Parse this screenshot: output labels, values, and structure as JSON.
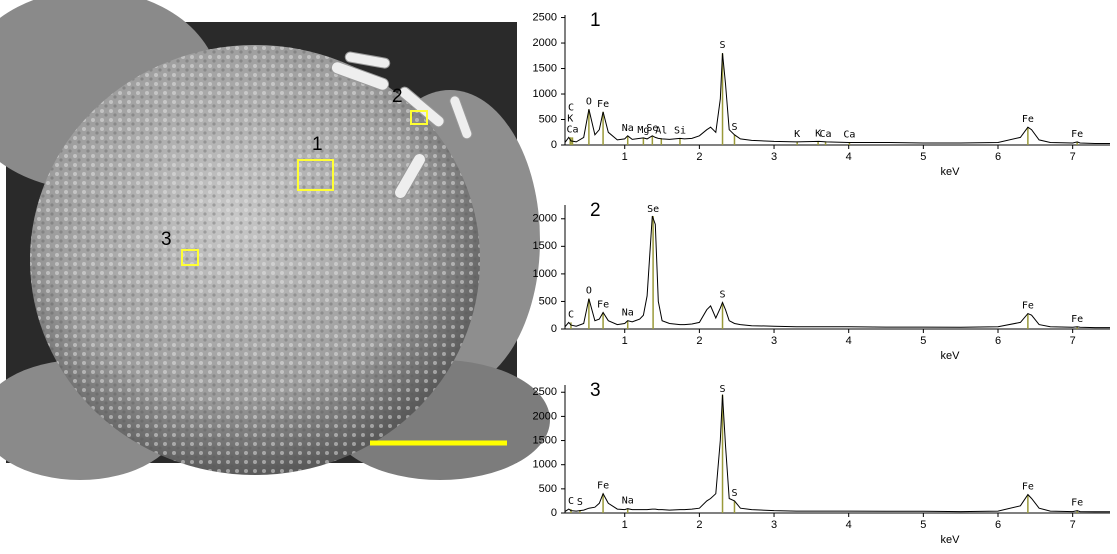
{
  "image": {
    "regions": [
      {
        "label": "1"
      },
      {
        "label": "2"
      },
      {
        "label": "3"
      }
    ]
  },
  "chart_data": [
    {
      "type": "line",
      "title": "1",
      "xlabel": "keV",
      "xlim": [
        0.2,
        7.5
      ],
      "ylim": [
        0,
        2550
      ],
      "xticks": [
        1,
        2,
        3,
        4,
        5,
        6,
        7
      ],
      "yticks": [
        0,
        500,
        1000,
        1500,
        2000,
        2500
      ],
      "color": "#000000",
      "x": [
        0.2,
        0.25,
        0.28,
        0.35,
        0.45,
        0.52,
        0.6,
        0.66,
        0.71,
        0.78,
        0.9,
        1.0,
        1.04,
        1.1,
        1.2,
        1.25,
        1.3,
        1.37,
        1.41,
        1.45,
        1.5,
        1.6,
        1.74,
        1.8,
        1.9,
        2.0,
        2.1,
        2.15,
        2.22,
        2.28,
        2.31,
        2.35,
        2.4,
        2.47,
        2.55,
        2.7,
        3.0,
        3.3,
        3.6,
        3.7,
        4.0,
        4.5,
        5.0,
        5.5,
        6.0,
        6.3,
        6.4,
        6.45,
        6.55,
        6.7,
        7.0,
        7.06,
        7.1,
        7.3,
        7.5
      ],
      "values": [
        50,
        150,
        80,
        60,
        150,
        700,
        200,
        300,
        650,
        250,
        100,
        120,
        180,
        110,
        130,
        140,
        120,
        180,
        150,
        130,
        120,
        110,
        130,
        120,
        130,
        180,
        300,
        350,
        250,
        900,
        1800,
        1200,
        300,
        200,
        120,
        90,
        70,
        60,
        70,
        60,
        50,
        50,
        40,
        40,
        50,
        150,
        350,
        300,
        100,
        50,
        40,
        60,
        40,
        30,
        30
      ],
      "annotations": [
        {
          "text": "Ca",
          "x": 0.3
        },
        {
          "text": "K",
          "x": 0.27
        },
        {
          "text": "C",
          "x": 0.28
        },
        {
          "text": "O",
          "x": 0.52
        },
        {
          "text": "Fe",
          "x": 0.71
        },
        {
          "text": "Na",
          "x": 1.04
        },
        {
          "text": "Mg",
          "x": 1.25
        },
        {
          "text": "Se",
          "x": 1.37
        },
        {
          "text": "Al",
          "x": 1.49
        },
        {
          "text": "Si",
          "x": 1.74
        },
        {
          "text": "S",
          "x": 2.31
        },
        {
          "text": "S",
          "x": 2.47
        },
        {
          "text": "K",
          "x": 3.31
        },
        {
          "text": "K",
          "x": 3.59
        },
        {
          "text": "Ca",
          "x": 3.69
        },
        {
          "text": "Ca",
          "x": 4.01
        },
        {
          "text": "Fe",
          "x": 6.4
        },
        {
          "text": "Fe",
          "x": 7.06
        }
      ]
    },
    {
      "type": "line",
      "title": "2",
      "xlabel": "keV",
      "xlim": [
        0.2,
        7.5
      ],
      "ylim": [
        0,
        2250
      ],
      "xticks": [
        1,
        2,
        3,
        4,
        5,
        6,
        7
      ],
      "yticks": [
        0,
        500,
        1000,
        1500,
        2000
      ],
      "color": "#000000",
      "x": [
        0.2,
        0.25,
        0.28,
        0.35,
        0.45,
        0.52,
        0.6,
        0.66,
        0.71,
        0.78,
        0.9,
        1.0,
        1.04,
        1.1,
        1.2,
        1.25,
        1.3,
        1.37,
        1.41,
        1.45,
        1.5,
        1.6,
        1.74,
        1.8,
        1.9,
        2.0,
        2.1,
        2.15,
        2.22,
        2.28,
        2.31,
        2.35,
        2.4,
        2.47,
        2.55,
        2.7,
        3.0,
        3.3,
        3.6,
        3.7,
        4.0,
        4.5,
        5.0,
        5.5,
        6.0,
        6.3,
        6.4,
        6.45,
        6.55,
        6.7,
        7.0,
        7.06,
        7.1,
        7.3,
        7.5
      ],
      "values": [
        40,
        120,
        70,
        50,
        100,
        550,
        150,
        180,
        300,
        150,
        80,
        100,
        150,
        130,
        180,
        250,
        600,
        2050,
        1900,
        500,
        150,
        100,
        80,
        80,
        90,
        120,
        350,
        420,
        200,
        380,
        480,
        350,
        150,
        100,
        80,
        60,
        50,
        40,
        40,
        40,
        40,
        35,
        35,
        30,
        40,
        120,
        280,
        250,
        80,
        40,
        30,
        40,
        30,
        25,
        25
      ],
      "annotations": [
        {
          "text": "C",
          "x": 0.28
        },
        {
          "text": "O",
          "x": 0.52
        },
        {
          "text": "Fe",
          "x": 0.71
        },
        {
          "text": "Na",
          "x": 1.04
        },
        {
          "text": "Se",
          "x": 1.38
        },
        {
          "text": "S",
          "x": 2.31
        },
        {
          "text": "Fe",
          "x": 6.4
        },
        {
          "text": "Fe",
          "x": 7.06
        }
      ]
    },
    {
      "type": "line",
      "title": "3",
      "xlabel": "keV",
      "xlim": [
        0.2,
        7.5
      ],
      "ylim": [
        0,
        2650
      ],
      "xticks": [
        1,
        2,
        3,
        4,
        5,
        6,
        7
      ],
      "yticks": [
        0,
        500,
        1000,
        1500,
        2000,
        2500
      ],
      "color": "#000000",
      "x": [
        0.2,
        0.25,
        0.28,
        0.35,
        0.45,
        0.52,
        0.6,
        0.66,
        0.71,
        0.78,
        0.9,
        1.0,
        1.04,
        1.1,
        1.2,
        1.25,
        1.3,
        1.37,
        1.41,
        1.45,
        1.5,
        1.6,
        1.74,
        1.8,
        1.9,
        2.0,
        2.1,
        2.15,
        2.22,
        2.28,
        2.31,
        2.35,
        2.4,
        2.47,
        2.55,
        2.7,
        3.0,
        3.3,
        3.6,
        3.7,
        4.0,
        4.5,
        5.0,
        5.5,
        6.0,
        6.3,
        6.4,
        6.45,
        6.55,
        6.7,
        7.0,
        7.06,
        7.1,
        7.3,
        7.5
      ],
      "values": [
        30,
        80,
        50,
        40,
        60,
        100,
        120,
        200,
        400,
        200,
        80,
        70,
        90,
        70,
        70,
        70,
        70,
        80,
        80,
        70,
        70,
        60,
        70,
        70,
        80,
        100,
        250,
        300,
        400,
        1500,
        2450,
        1400,
        300,
        250,
        100,
        70,
        50,
        40,
        40,
        40,
        40,
        35,
        35,
        30,
        40,
        150,
        380,
        300,
        100,
        40,
        30,
        50,
        30,
        25,
        25
      ],
      "annotations": [
        {
          "text": "C",
          "x": 0.28
        },
        {
          "text": "S",
          "x": 0.4
        },
        {
          "text": "Fe",
          "x": 0.71
        },
        {
          "text": "Na",
          "x": 1.04
        },
        {
          "text": "S",
          "x": 2.31
        },
        {
          "text": "S",
          "x": 2.47
        },
        {
          "text": "Fe",
          "x": 6.4
        },
        {
          "text": "Fe",
          "x": 7.06
        }
      ]
    }
  ]
}
